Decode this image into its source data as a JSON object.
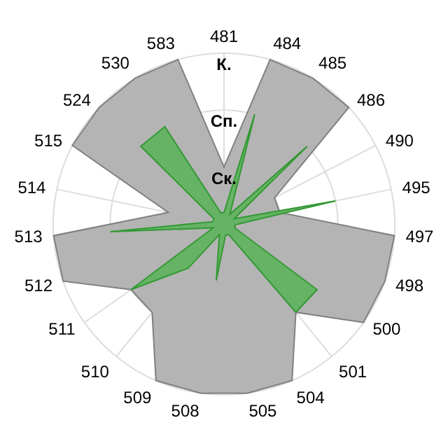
{
  "chart_data": {
    "type": "radar",
    "categories": [
      "481",
      "484",
      "485",
      "486",
      "490",
      "495",
      "497",
      "498",
      "500",
      "501",
      "504",
      "505",
      "508",
      "509",
      "510",
      "511",
      "512",
      "513",
      "514",
      "515",
      "524",
      "530",
      "583"
    ],
    "series": [
      {
        "color": "#b4b4b4",
        "values": [
          1,
          3,
          3,
          3,
          1,
          1,
          3,
          3,
          3,
          2,
          3,
          3,
          3,
          3,
          2,
          2,
          3,
          3,
          1,
          3,
          3,
          3,
          3
        ]
      },
      {
        "color": "#66b366",
        "values": [
          0.2,
          2,
          0.2,
          2,
          0.2,
          2,
          0.2,
          0.2,
          2,
          2,
          0.2,
          0.2,
          1,
          0.2,
          1,
          2,
          0.2,
          2,
          0.2,
          0.2,
          2,
          2,
          0.2
        ]
      }
    ],
    "ylim": [
      0,
      3
    ],
    "yticks": [
      {
        "value": 1,
        "label": "Ск."
      },
      {
        "value": 2,
        "label": "Сп."
      },
      {
        "value": 3,
        "label": "К."
      }
    ],
    "grid": true
  }
}
